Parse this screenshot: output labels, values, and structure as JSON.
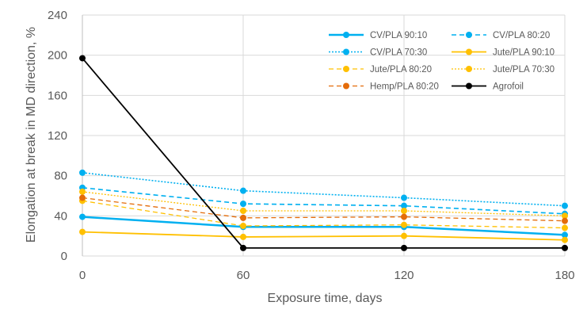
{
  "chart_data": {
    "type": "line",
    "title": "",
    "xlabel": "Exposure time, days",
    "ylabel": "Elongation at break in MD direction, %",
    "x": [
      0,
      60,
      120,
      180
    ],
    "xlim": [
      0,
      180
    ],
    "ylim": [
      0,
      240
    ],
    "xticks": [
      "0",
      "60",
      "120",
      "180"
    ],
    "yticks": [
      "0",
      "40",
      "80",
      "120",
      "160",
      "200",
      "240"
    ],
    "grid": true,
    "legend_position": "top-right",
    "series": [
      {
        "name": "CV/PLA 90:10",
        "values": [
          39,
          29,
          29,
          21
        ],
        "color": "#00B0F0",
        "line": "solid",
        "width": 2.5
      },
      {
        "name": "CV/PLA 80:20",
        "values": [
          68,
          52,
          50,
          42
        ],
        "color": "#00B0F0",
        "line": "dashed",
        "width": 1.6
      },
      {
        "name": "CV/PLA 70:30",
        "values": [
          83,
          65,
          58,
          50
        ],
        "color": "#00B0F0",
        "line": "dotted",
        "width": 1.6
      },
      {
        "name": "Jute/PLA 90:10",
        "values": [
          24,
          19,
          20,
          16
        ],
        "color": "#FFC000",
        "line": "solid",
        "width": 1.8
      },
      {
        "name": "Jute/PLA 80:20",
        "values": [
          55,
          30,
          31,
          28
        ],
        "color": "#FFC000",
        "line": "dashed",
        "width": 1.3
      },
      {
        "name": "Jute/PLA 70:30",
        "values": [
          64,
          45,
          45,
          40
        ],
        "color": "#FFC000",
        "line": "dotted",
        "width": 1.3
      },
      {
        "name": "Hemp/PLA 80:20",
        "values": [
          58,
          38,
          39,
          35
        ],
        "color": "#E46C0A",
        "line": "dashed",
        "width": 1.3
      },
      {
        "name": "Agrofoil",
        "values": [
          197,
          8,
          8,
          8
        ],
        "color": "#000000",
        "line": "solid",
        "width": 1.8
      }
    ]
  }
}
